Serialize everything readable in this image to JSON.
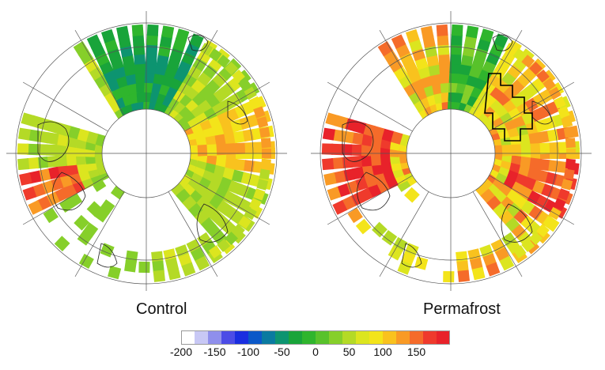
{
  "maps": [
    {
      "title": "Control",
      "scenario": "control"
    },
    {
      "title": "Permafrost",
      "scenario": "permafrost"
    }
  ],
  "colorbar": {
    "ticks": [
      {
        "label": "-200",
        "value": -200
      },
      {
        "label": "-150",
        "value": -150
      },
      {
        "label": "-100",
        "value": -100
      },
      {
        "label": "-50",
        "value": -50
      },
      {
        "label": "0",
        "value": 0
      },
      {
        "label": "50",
        "value": 50
      },
      {
        "label": "100",
        "value": 100
      },
      {
        "label": "150",
        "value": 150
      }
    ],
    "min": -200,
    "max": 200,
    "colors": [
      "#ffffff",
      "#c8c8f5",
      "#8f8fec",
      "#4c4ce6",
      "#1a2ee0",
      "#0b58c8",
      "#0a7aa0",
      "#0d9470",
      "#19a43a",
      "#2fb52d",
      "#58c22b",
      "#86cf2a",
      "#b4da26",
      "#dce51f",
      "#f3e41a",
      "#f9c21e",
      "#f99a25",
      "#f56b2a",
      "#ef3a2c",
      "#e8222a"
    ]
  }
}
